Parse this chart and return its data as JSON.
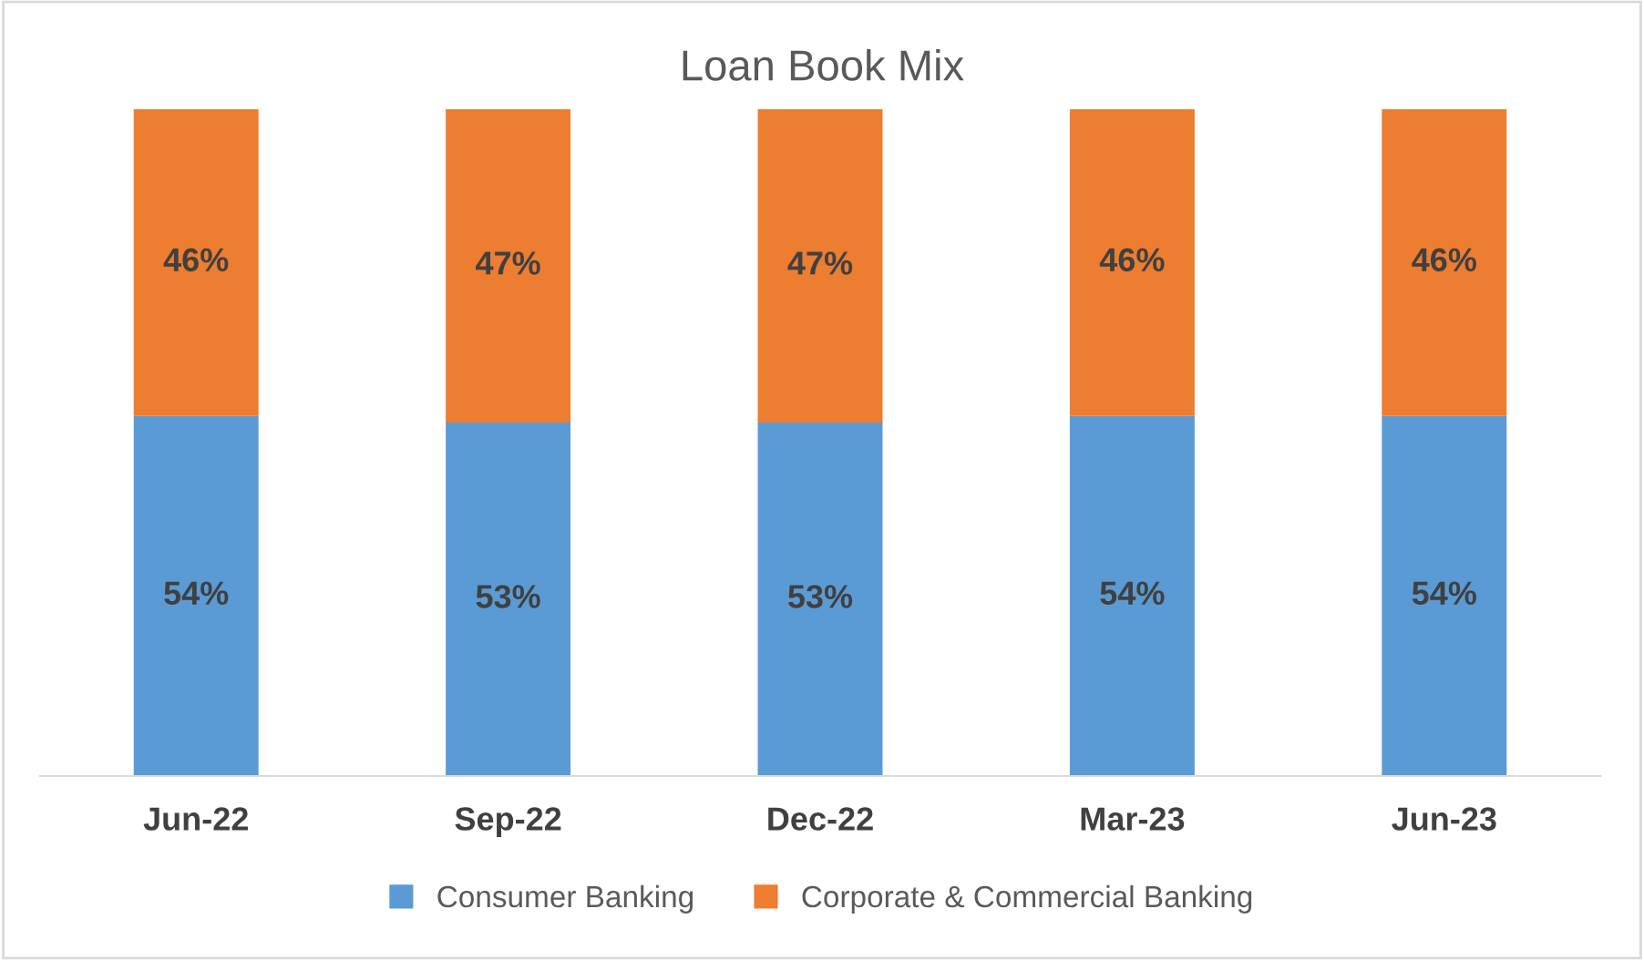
{
  "chart_data": {
    "type": "bar",
    "title": "Loan Book Mix",
    "stacked": true,
    "categories": [
      "Jun-22",
      "Sep-22",
      "Dec-22",
      "Mar-23",
      "Jun-23"
    ],
    "series": [
      {
        "name": "Consumer Banking",
        "color": "#5b9bd5",
        "values": [
          54,
          53,
          53,
          54,
          54
        ],
        "value_labels": [
          "54%",
          "53%",
          "53%",
          "54%",
          "54%"
        ]
      },
      {
        "name": "Corporate & Commercial Banking",
        "color": "#ed7d31",
        "values": [
          46,
          47,
          47,
          46,
          46
        ],
        "value_labels": [
          "46%",
          "47%",
          "47%",
          "46%",
          "46%"
        ]
      }
    ],
    "ylim": [
      0,
      100
    ],
    "tick_labels": "x",
    "grid": false,
    "legend": "bottom"
  }
}
